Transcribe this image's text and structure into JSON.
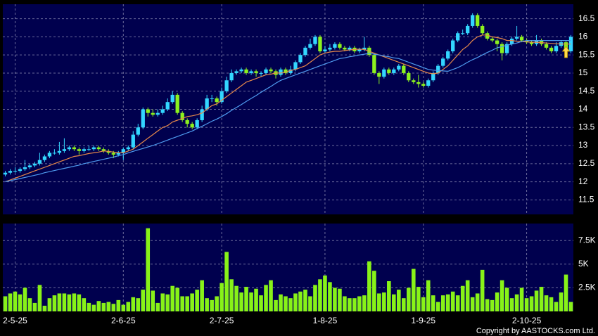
{
  "chart_data": [
    {
      "type": "candlestick",
      "categories": [
        null,
        null,
        "2-5-25",
        null,
        null,
        null,
        null,
        null,
        null,
        null,
        null,
        null,
        null,
        null,
        null,
        null,
        null,
        null,
        null,
        null,
        null,
        null,
        null,
        null,
        "2-6-25",
        null,
        null,
        null,
        null,
        null,
        null,
        null,
        null,
        null,
        null,
        null,
        null,
        null,
        null,
        null,
        null,
        null,
        null,
        null,
        "2-7-25",
        null,
        null,
        null,
        null,
        null,
        null,
        null,
        null,
        null,
        null,
        null,
        null,
        null,
        null,
        null,
        null,
        null,
        null,
        null,
        null,
        "1-8-25",
        null,
        null,
        null,
        null,
        null,
        null,
        null,
        null,
        null,
        null,
        null,
        null,
        null,
        null,
        null,
        null,
        null,
        null,
        null,
        "1-9-25",
        null,
        null,
        null,
        null,
        null,
        null,
        null,
        null,
        null,
        null,
        null,
        null,
        null,
        null,
        null,
        null,
        null,
        null,
        null,
        null,
        "2-10-25",
        null,
        null,
        null,
        null,
        null,
        null,
        null,
        null,
        null
      ],
      "open": [
        12.2,
        12.25,
        12.3,
        12.3,
        12.35,
        12.4,
        12.45,
        12.5,
        12.6,
        12.7,
        12.8,
        12.8,
        12.85,
        12.9,
        12.95,
        12.9,
        12.85,
        12.9,
        12.9,
        12.95,
        12.9,
        12.85,
        12.8,
        12.75,
        12.8,
        12.9,
        12.95,
        13.3,
        13.5,
        14.0,
        13.9,
        13.85,
        13.9,
        14.0,
        14.2,
        14.4,
        13.9,
        13.7,
        13.6,
        13.5,
        13.7,
        14.0,
        14.3,
        14.3,
        14.2,
        14.5,
        14.8,
        15.0,
        15.05,
        15.1,
        15.0,
        15.05,
        15.0,
        15.0,
        15.1,
        15.05,
        14.95,
        15.1,
        15.0,
        15.1,
        15.3,
        15.5,
        15.7,
        15.8,
        16.0,
        15.6,
        15.65,
        15.7,
        15.8,
        15.7,
        15.65,
        15.7,
        15.6,
        15.65,
        15.7,
        15.5,
        15.0,
        14.9,
        15.1,
        15.0,
        15.1,
        15.2,
        15.0,
        14.8,
        14.75,
        14.7,
        14.65,
        14.8,
        15.0,
        15.2,
        15.4,
        15.6,
        15.9,
        16.1,
        16.1,
        16.3,
        16.6,
        16.3,
        16.1,
        15.95,
        15.9,
        15.8,
        15.55,
        15.8,
        15.95,
        16.0,
        15.9,
        15.85,
        15.8,
        15.9,
        15.8,
        15.7,
        15.6,
        15.75,
        15.85,
        15.6
      ],
      "high": [
        12.3,
        12.35,
        12.4,
        12.4,
        12.6,
        12.5,
        12.55,
        12.8,
        12.75,
        12.85,
        12.9,
        13.1,
        13.2,
        13.0,
        13.0,
        12.95,
        12.95,
        13.0,
        13.0,
        13.0,
        12.95,
        12.9,
        12.85,
        12.85,
        12.95,
        13.0,
        13.4,
        13.6,
        14.05,
        14.05,
        14.0,
        14.0,
        14.1,
        14.3,
        14.5,
        14.45,
        13.95,
        13.75,
        13.65,
        13.75,
        14.1,
        14.4,
        14.4,
        14.35,
        14.6,
        14.9,
        15.1,
        15.1,
        15.15,
        15.15,
        15.1,
        15.1,
        15.05,
        15.15,
        15.15,
        15.1,
        15.15,
        15.15,
        15.2,
        15.35,
        15.55,
        15.75,
        15.95,
        16.05,
        16.05,
        15.75,
        15.8,
        15.85,
        15.85,
        15.75,
        15.75,
        15.75,
        15.7,
        16.0,
        15.75,
        15.55,
        15.05,
        15.15,
        15.15,
        15.15,
        15.25,
        15.25,
        15.05,
        14.85,
        14.95,
        14.75,
        14.85,
        15.05,
        15.25,
        15.45,
        15.65,
        15.95,
        16.15,
        16.2,
        16.35,
        16.65,
        16.65,
        16.35,
        16.15,
        16.0,
        15.95,
        15.85,
        15.85,
        16.0,
        16.3,
        16.05,
        15.95,
        15.9,
        16.05,
        15.95,
        15.85,
        15.75,
        15.85,
        15.9,
        15.9,
        16.05
      ],
      "low": [
        12.15,
        12.2,
        12.25,
        12.25,
        12.3,
        12.35,
        12.4,
        12.45,
        12.55,
        12.65,
        12.75,
        12.75,
        12.8,
        12.85,
        12.85,
        12.75,
        12.8,
        12.85,
        12.85,
        12.85,
        12.8,
        12.75,
        12.65,
        12.7,
        12.6,
        12.85,
        12.9,
        13.25,
        13.45,
        13.8,
        13.8,
        13.8,
        13.85,
        13.95,
        14.15,
        13.85,
        13.65,
        13.5,
        13.45,
        13.45,
        13.65,
        13.95,
        14.2,
        14.1,
        14.15,
        14.45,
        14.75,
        14.95,
        15.0,
        14.95,
        14.95,
        14.9,
        14.9,
        14.95,
        15.0,
        14.85,
        14.9,
        14.95,
        14.95,
        15.05,
        15.25,
        15.45,
        15.65,
        15.75,
        15.55,
        15.55,
        15.6,
        15.65,
        15.65,
        15.6,
        15.6,
        15.55,
        15.55,
        15.6,
        15.45,
        14.95,
        14.7,
        14.85,
        14.95,
        14.95,
        15.05,
        14.95,
        14.75,
        14.7,
        14.6,
        14.6,
        14.6,
        14.75,
        14.95,
        15.15,
        15.35,
        15.55,
        15.85,
        16.05,
        16.05,
        16.25,
        16.25,
        16.05,
        15.9,
        15.85,
        15.6,
        15.35,
        15.5,
        15.75,
        15.9,
        15.85,
        15.8,
        15.75,
        15.75,
        15.75,
        15.65,
        15.55,
        15.55,
        15.7,
        15.5,
        15.55
      ],
      "close": [
        12.25,
        12.3,
        12.3,
        12.35,
        12.4,
        12.45,
        12.5,
        12.6,
        12.7,
        12.8,
        12.8,
        12.85,
        12.9,
        12.95,
        12.9,
        12.85,
        12.9,
        12.9,
        12.95,
        12.9,
        12.85,
        12.8,
        12.75,
        12.8,
        12.9,
        12.95,
        13.3,
        13.5,
        14.0,
        13.9,
        13.85,
        13.9,
        14.0,
        14.2,
        14.4,
        13.9,
        13.7,
        13.6,
        13.5,
        13.7,
        14.0,
        14.3,
        14.3,
        14.2,
        14.5,
        14.8,
        15.0,
        15.05,
        15.1,
        15.0,
        15.05,
        15.0,
        15.0,
        15.1,
        15.05,
        14.95,
        15.1,
        15.0,
        15.1,
        15.3,
        15.5,
        15.7,
        15.8,
        16.0,
        15.6,
        15.65,
        15.7,
        15.8,
        15.7,
        15.65,
        15.7,
        15.6,
        15.65,
        15.7,
        15.5,
        15.0,
        14.9,
        15.1,
        15.0,
        15.1,
        15.2,
        15.0,
        14.8,
        14.75,
        14.7,
        14.65,
        14.8,
        15.0,
        15.2,
        15.4,
        15.6,
        15.9,
        16.1,
        16.1,
        16.3,
        16.6,
        16.3,
        16.1,
        15.95,
        15.9,
        15.8,
        15.55,
        15.8,
        15.95,
        16.0,
        15.9,
        15.85,
        15.8,
        15.9,
        15.8,
        15.7,
        15.6,
        15.75,
        15.85,
        15.6,
        16.0
      ],
      "up_color": "#33d6ff",
      "down_color": "#8cf21e",
      "series": [
        {
          "color": "#e8894a",
          "values": [
            12.0,
            12.05,
            12.1,
            12.15,
            12.2,
            12.25,
            12.3,
            12.35,
            12.4,
            12.45,
            12.5,
            12.55,
            12.6,
            12.65,
            12.7,
            12.72,
            12.75,
            12.78,
            12.8,
            12.82,
            12.85,
            12.84,
            12.82,
            12.8,
            12.8,
            12.85,
            12.9,
            13.0,
            13.1,
            13.2,
            13.3,
            13.4,
            13.5,
            13.55,
            13.65,
            13.7,
            13.75,
            13.8,
            13.82,
            13.85,
            13.9,
            14.0,
            14.1,
            14.15,
            14.25,
            14.35,
            14.45,
            14.55,
            14.65,
            14.75,
            14.8,
            14.85,
            14.9,
            14.95,
            14.97,
            15.0,
            15.0,
            15.03,
            15.07,
            15.1,
            15.15,
            15.2,
            15.3,
            15.4,
            15.5,
            15.55,
            15.58,
            15.6,
            15.6,
            15.62,
            15.64,
            15.65,
            15.66,
            15.65,
            15.6,
            15.55,
            15.5,
            15.45,
            15.4,
            15.35,
            15.3,
            15.25,
            15.2,
            15.15,
            15.1,
            15.05,
            15.0,
            14.98,
            15.0,
            15.1,
            15.2,
            15.35,
            15.5,
            15.65,
            15.75,
            15.9,
            16.0,
            16.05,
            16.05,
            16.0,
            15.98,
            15.95,
            15.9,
            15.9,
            15.88,
            15.87,
            15.86,
            15.85,
            15.85,
            15.84,
            15.83,
            15.82,
            15.81,
            15.8,
            15.8,
            15.8
          ]
        },
        {
          "color": "#4f9cf0",
          "values": [
            12.0,
            12.03,
            12.06,
            12.09,
            12.12,
            12.15,
            12.18,
            12.21,
            12.25,
            12.28,
            12.31,
            12.34,
            12.37,
            12.4,
            12.43,
            12.46,
            12.5,
            12.53,
            12.56,
            12.59,
            12.62,
            12.65,
            12.68,
            12.72,
            12.75,
            12.8,
            12.84,
            12.88,
            12.92,
            12.96,
            13.0,
            13.05,
            13.1,
            13.15,
            13.2,
            13.25,
            13.3,
            13.35,
            13.4,
            13.47,
            13.53,
            13.6,
            13.67,
            13.73,
            13.8,
            13.88,
            13.97,
            14.05,
            14.13,
            14.22,
            14.3,
            14.38,
            14.47,
            14.55,
            14.63,
            14.72,
            14.8,
            14.85,
            14.9,
            14.95,
            15.0,
            15.05,
            15.1,
            15.15,
            15.2,
            15.25,
            15.3,
            15.35,
            15.4,
            15.42,
            15.45,
            15.47,
            15.5,
            15.52,
            15.55,
            15.52,
            15.5,
            15.47,
            15.45,
            15.42,
            15.4,
            15.35,
            15.3,
            15.25,
            15.2,
            15.15,
            15.1,
            15.08,
            15.07,
            15.06,
            15.05,
            15.1,
            15.15,
            15.22,
            15.3,
            15.37,
            15.43,
            15.5,
            15.57,
            15.63,
            15.7,
            15.73,
            15.77,
            15.8,
            15.83,
            15.87,
            15.9,
            15.9,
            15.9,
            15.9,
            15.9,
            15.9,
            15.9,
            15.9,
            15.9,
            15.9
          ]
        }
      ],
      "ylim": [
        11.1,
        16.9
      ],
      "yticks": [
        11.5,
        12,
        12.5,
        13,
        13.5,
        14,
        14.5,
        15,
        15.5,
        16,
        16.5
      ],
      "grid": true
    },
    {
      "type": "bar",
      "color": "#88f218",
      "values": [
        1600,
        1900,
        2100,
        1800,
        2500,
        1400,
        900,
        2800,
        600,
        1400,
        1700,
        1900,
        1900,
        1800,
        1900,
        1800,
        1400,
        900,
        700,
        1100,
        900,
        1000,
        800,
        1200,
        700,
        1000,
        1500,
        1400,
        2300,
        8800,
        2200,
        900,
        1900,
        1800,
        2700,
        2500,
        1600,
        1600,
        1900,
        2300,
        3300,
        1400,
        1200,
        1600,
        3000,
        6300,
        3400,
        2700,
        2000,
        2600,
        2000,
        2400,
        1700,
        2800,
        3300,
        1200,
        1800,
        1600,
        1400,
        1900,
        2100,
        2300,
        1600,
        2800,
        3400,
        3800,
        3100,
        2500,
        2400,
        1600,
        1400,
        1400,
        1600,
        1700,
        5300,
        4300,
        1900,
        2000,
        3200,
        1800,
        2300,
        1400,
        2500,
        4500,
        2600,
        1500,
        3300,
        1700,
        1000,
        1700,
        1800,
        2100,
        1700,
        2700,
        3300,
        1500,
        1900,
        4400,
        1300,
        1200,
        2000,
        3300,
        2500,
        1400,
        1800,
        2500,
        1400,
        1600,
        2200,
        2600,
        1700,
        1500,
        1000,
        2000,
        3900,
        1000
      ],
      "ylim": [
        0,
        9300
      ],
      "yticks": [
        {
          "value": 2500,
          "label": "2.5K"
        },
        {
          "value": 5000,
          "label": "5K"
        },
        {
          "value": 7500,
          "label": "7.5K"
        }
      ],
      "grid": true
    }
  ],
  "copyright": "Copyright by AASTOCKS.com Ltd."
}
